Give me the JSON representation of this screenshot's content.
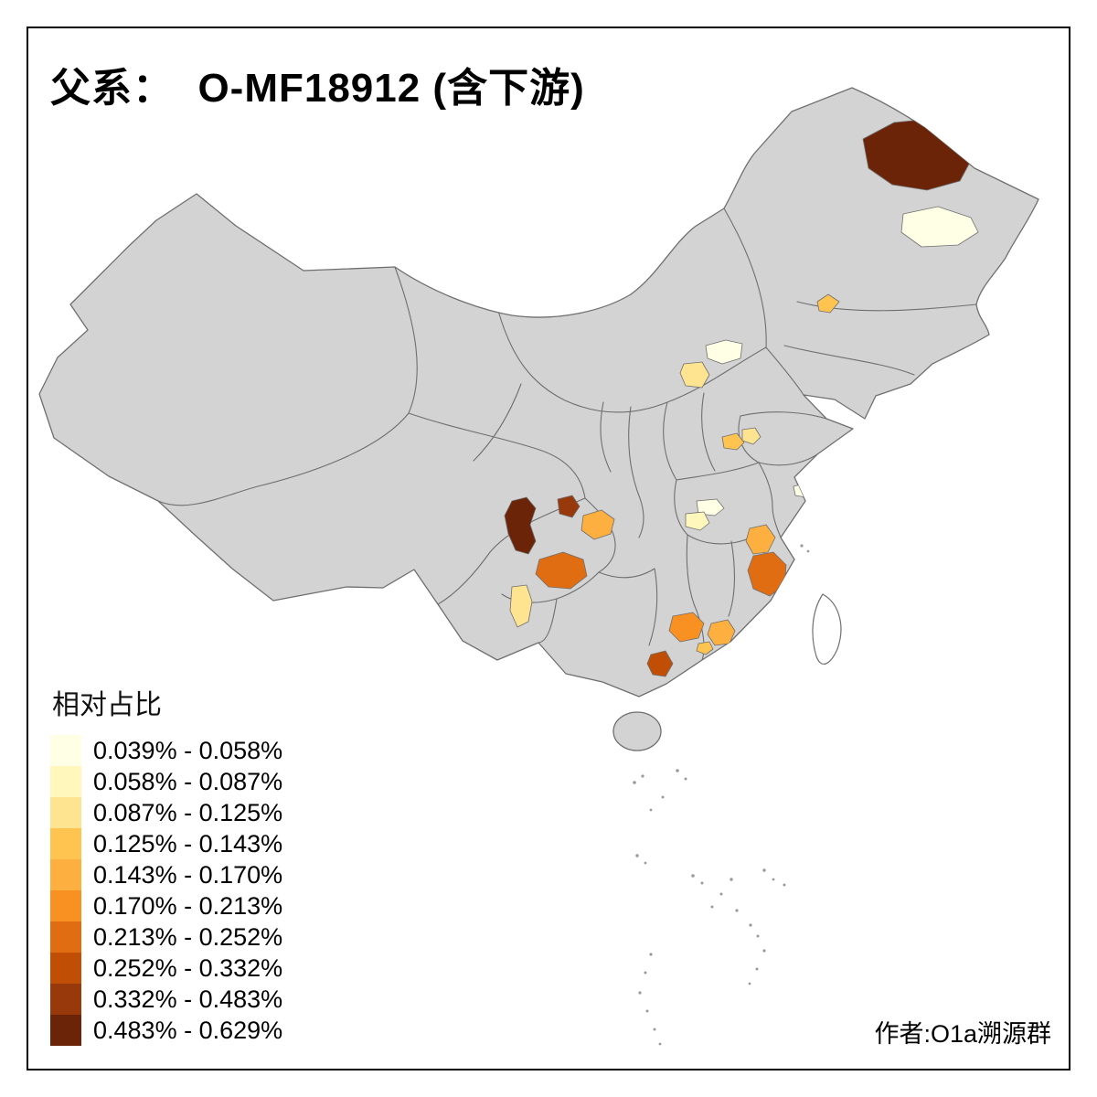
{
  "title": {
    "text": "父系：  O-MF18912 (含下游)"
  },
  "legend": {
    "title": "相对占比",
    "classes": [
      {
        "label": "0.039% - 0.058%",
        "color": "#FFFFE5"
      },
      {
        "label": "0.058% - 0.087%",
        "color": "#FFF7BC"
      },
      {
        "label": "0.087% - 0.125%",
        "color": "#FEE391"
      },
      {
        "label": "0.125% - 0.143%",
        "color": "#FEC44F"
      },
      {
        "label": "0.143% - 0.170%",
        "color": "#FDB040"
      },
      {
        "label": "0.170% - 0.213%",
        "color": "#F89122"
      },
      {
        "label": "0.213% - 0.252%",
        "color": "#E16D12"
      },
      {
        "label": "0.252% - 0.332%",
        "color": "#C14E05"
      },
      {
        "label": "0.332% - 0.483%",
        "color": "#97390B"
      },
      {
        "label": "0.483% - 0.629%",
        "color": "#6C2409"
      }
    ]
  },
  "credit": {
    "text": "作者:O1a溯源群"
  },
  "map": {
    "land_fill": "#D3D3D3",
    "border_color": "#6F6F6F",
    "islands_color": "#9A9A9A",
    "regions": [
      {
        "name": "heilongjiang-north",
        "class_index": 9
      },
      {
        "name": "heilongjiang-east",
        "class_index": 0
      },
      {
        "name": "liaoning-west",
        "class_index": 3
      },
      {
        "name": "beijing-hebei",
        "class_index": 0
      },
      {
        "name": "shanxi-central",
        "class_index": 2
      },
      {
        "name": "jiangsu-north",
        "class_index": 3
      },
      {
        "name": "jiangsu-northeast",
        "class_index": 2
      },
      {
        "name": "shanghai-area",
        "class_index": 0
      },
      {
        "name": "hubei-east",
        "class_index": 0
      },
      {
        "name": "hubei-central",
        "class_index": 1
      },
      {
        "name": "sichuan-west",
        "class_index": 9
      },
      {
        "name": "sichuan-central",
        "class_index": 8
      },
      {
        "name": "chongqing-west",
        "class_index": 4
      },
      {
        "name": "sichuan-south",
        "class_index": 6
      },
      {
        "name": "yunnan-central",
        "class_index": 2
      },
      {
        "name": "jiangxi-northeast",
        "class_index": 4
      },
      {
        "name": "fujian-west",
        "class_index": 6
      },
      {
        "name": "fujian-coast",
        "class_index": 5
      },
      {
        "name": "guangxi-east",
        "class_index": 5
      },
      {
        "name": "guangdong-central",
        "class_index": 4
      },
      {
        "name": "guangdong-west-small",
        "class_index": 3
      },
      {
        "name": "guangxi-south",
        "class_index": 7
      }
    ]
  }
}
